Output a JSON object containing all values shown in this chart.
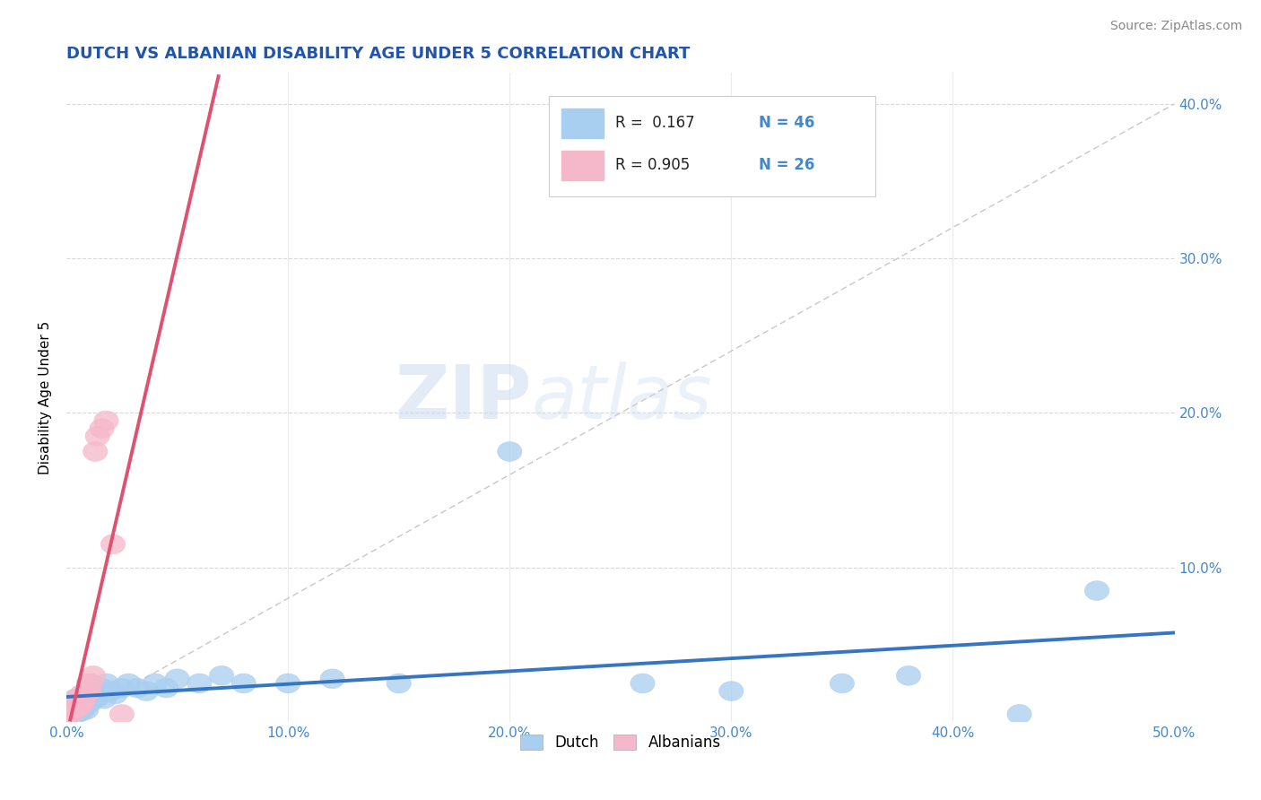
{
  "title": "DUTCH VS ALBANIAN DISABILITY AGE UNDER 5 CORRELATION CHART",
  "source": "Source: ZipAtlas.com",
  "ylabel": "Disability Age Under 5",
  "xlim": [
    0.0,
    0.5
  ],
  "ylim": [
    0.0,
    0.42
  ],
  "x_ticks": [
    0.0,
    0.1,
    0.2,
    0.3,
    0.4,
    0.5
  ],
  "x_tick_labels": [
    "0.0%",
    "10.0%",
    "20.0%",
    "30.0%",
    "40.0%",
    "50.0%"
  ],
  "y_ticks": [
    0.0,
    0.1,
    0.2,
    0.3,
    0.4
  ],
  "y_tick_labels": [
    "",
    "10.0%",
    "20.0%",
    "30.0%",
    "40.0%"
  ],
  "dutch_color": "#A8CEF0",
  "albanian_color": "#F5B8CA",
  "dutch_line_color": "#3575C2",
  "albanian_line_color": "#E05070",
  "ref_line_color": "#C8C8C8",
  "title_color": "#2255AA",
  "tick_color": "#4488CC",
  "source_color": "#888888",
  "grid_color": "#D8D8D8",
  "legend_r_color": "#222222",
  "legend_n_color": "#4488CC",
  "watermark_zip": "ZIP",
  "watermark_atlas": "atlas",
  "dutch_x": [
    0.002,
    0.003,
    0.003,
    0.004,
    0.004,
    0.005,
    0.005,
    0.006,
    0.006,
    0.007,
    0.007,
    0.008,
    0.008,
    0.009,
    0.01,
    0.01,
    0.011,
    0.012,
    0.013,
    0.014,
    0.015,
    0.016,
    0.017,
    0.018,
    0.02,
    0.022,
    0.025,
    0.028,
    0.032,
    0.036,
    0.04,
    0.045,
    0.05,
    0.06,
    0.07,
    0.08,
    0.1,
    0.12,
    0.15,
    0.2,
    0.26,
    0.3,
    0.35,
    0.38,
    0.43,
    0.465
  ],
  "dutch_y": [
    0.01,
    0.008,
    0.012,
    0.008,
    0.015,
    0.01,
    0.006,
    0.012,
    0.008,
    0.01,
    0.007,
    0.012,
    0.01,
    0.008,
    0.015,
    0.012,
    0.018,
    0.014,
    0.02,
    0.016,
    0.018,
    0.022,
    0.015,
    0.025,
    0.02,
    0.018,
    0.022,
    0.025,
    0.022,
    0.02,
    0.025,
    0.022,
    0.028,
    0.025,
    0.03,
    0.025,
    0.025,
    0.028,
    0.025,
    0.175,
    0.025,
    0.02,
    0.025,
    0.03,
    0.005,
    0.085
  ],
  "alb_x": [
    0.001,
    0.001,
    0.002,
    0.002,
    0.003,
    0.003,
    0.004,
    0.004,
    0.005,
    0.005,
    0.006,
    0.006,
    0.007,
    0.007,
    0.008,
    0.009,
    0.01,
    0.01,
    0.011,
    0.012,
    0.013,
    0.014,
    0.016,
    0.018,
    0.021,
    0.025
  ],
  "alb_y": [
    0.005,
    0.008,
    0.006,
    0.01,
    0.008,
    0.012,
    0.008,
    0.012,
    0.01,
    0.015,
    0.01,
    0.015,
    0.012,
    0.018,
    0.015,
    0.018,
    0.02,
    0.025,
    0.025,
    0.03,
    0.175,
    0.185,
    0.19,
    0.195,
    0.115,
    0.005
  ]
}
